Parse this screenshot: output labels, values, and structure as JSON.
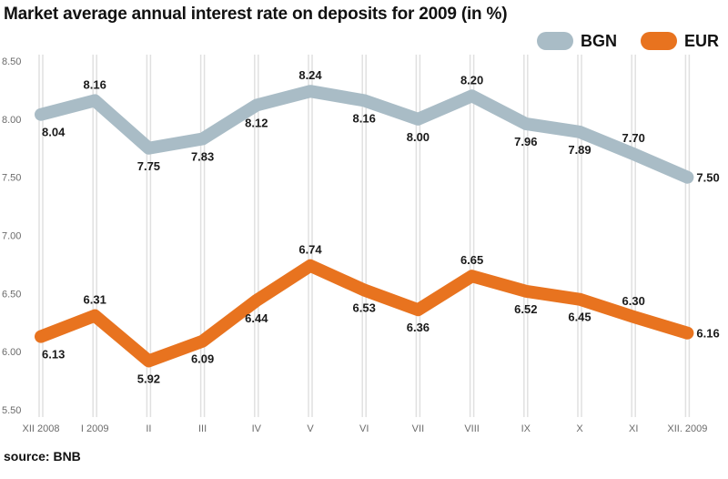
{
  "title": "Market  average annual interest rate on deposits for 2009 (in %)",
  "source": "source: BNB",
  "legend": [
    {
      "name": "BGN",
      "color": "#a9bcc6"
    },
    {
      "name": "EUR",
      "color": "#e8731f"
    }
  ],
  "chart_data": {
    "type": "line",
    "title": "Market  average annual interest rate on deposits for 2009 (in %)",
    "categories": [
      "XII 2008",
      "I 2009",
      "II",
      "III",
      "IV",
      "V",
      "VI",
      "VII",
      "VIII",
      "IX",
      "X",
      "XI",
      "XII. 2009"
    ],
    "series": [
      {
        "name": "BGN",
        "color": "#a9bcc6",
        "values": [
          8.04,
          8.16,
          7.75,
          7.83,
          8.12,
          8.24,
          8.16,
          8.0,
          8.2,
          7.96,
          7.89,
          7.7,
          7.5
        ]
      },
      {
        "name": "EUR",
        "color": "#e8731f",
        "values": [
          6.13,
          6.31,
          5.92,
          6.09,
          6.44,
          6.74,
          6.53,
          6.36,
          6.65,
          6.52,
          6.45,
          6.3,
          6.16
        ]
      }
    ],
    "y_ticks": [
      "8.50",
      "8.00",
      "7.50",
      "7.00",
      "6.50",
      "6.00",
      "5.50"
    ],
    "ylim": [
      5.5,
      8.5
    ],
    "grid": "vertical",
    "legend_position": "top-right",
    "xlabel": "",
    "ylabel": ""
  }
}
